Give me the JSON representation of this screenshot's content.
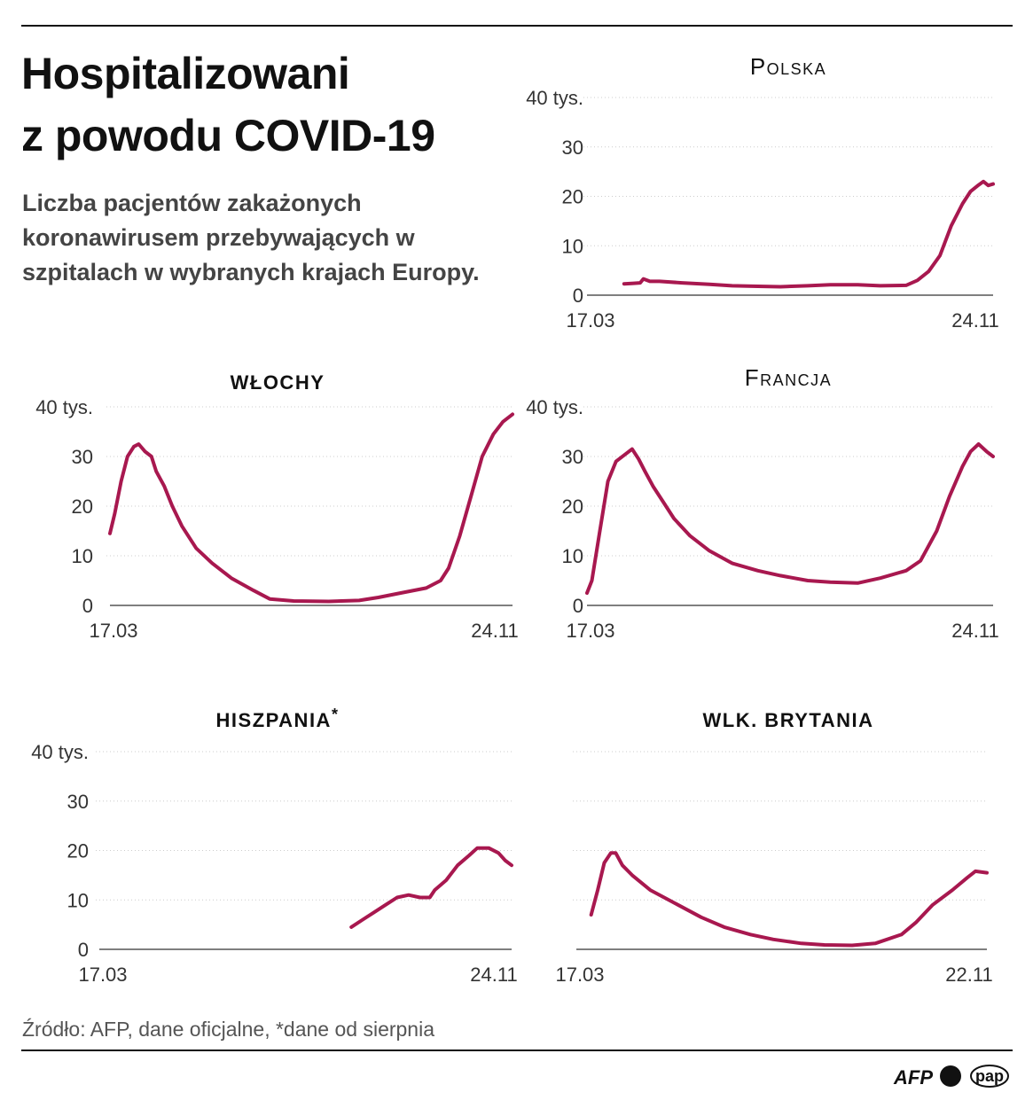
{
  "header": {
    "title_line1": "Hospitalizowani",
    "title_line2": "z powodu COVID-19",
    "subtitle": "Liczba pacjentów zakażonych koronawirusem przebywających w szpitalach w wybranych krajach Europy."
  },
  "footer": {
    "source": "Źródło: AFP, dane oficjalne, *dane od sierpnia",
    "logos": [
      "AFP",
      "pap"
    ]
  },
  "colors": {
    "line": "#a8184f",
    "grid": "#cccccc",
    "axis": "#333333"
  },
  "chart_data": [
    {
      "type": "line",
      "title": "Polska",
      "title_style": "small-caps",
      "ylim": [
        0,
        40
      ],
      "yticks": [
        "0",
        "10",
        "20",
        "30",
        "40 tys."
      ],
      "ytick_values": [
        0,
        10,
        20,
        30,
        40
      ],
      "xlabels": [
        "17.03",
        "24.11"
      ],
      "xrange": [
        "17.03",
        "24.11"
      ],
      "grid": true,
      "points": [
        [
          "09.04",
          2.3
        ],
        [
          "15.04",
          2.4
        ],
        [
          "19.04",
          2.5
        ],
        [
          "21.04",
          3.3
        ],
        [
          "25.04",
          2.8
        ],
        [
          "01.05",
          2.8
        ],
        [
          "15.05",
          2.5
        ],
        [
          "01.06",
          2.2
        ],
        [
          "15.06",
          1.9
        ],
        [
          "01.07",
          1.8
        ],
        [
          "15.07",
          1.7
        ],
        [
          "01.08",
          1.9
        ],
        [
          "15.08",
          2.1
        ],
        [
          "01.09",
          2.1
        ],
        [
          "15.09",
          1.9
        ],
        [
          "01.10",
          2.0
        ],
        [
          "08.10",
          3.0
        ],
        [
          "15.10",
          4.8
        ],
        [
          "22.10",
          8.0
        ],
        [
          "29.10",
          14.0
        ],
        [
          "05.11",
          18.5
        ],
        [
          "10.11",
          21.0
        ],
        [
          "15.11",
          22.3
        ],
        [
          "18.11",
          23.0
        ],
        [
          "21.11",
          22.2
        ],
        [
          "24.11",
          22.5
        ]
      ]
    },
    {
      "type": "line",
      "title": "WŁOCHY",
      "title_style": "uppercase",
      "ylim": [
        0,
        40
      ],
      "yticks": [
        "0",
        "10",
        "20",
        "30",
        "40 tys."
      ],
      "ytick_values": [
        0,
        10,
        20,
        30,
        40
      ],
      "xlabels": [
        "17.03",
        "24.11"
      ],
      "xrange": [
        "17.03",
        "24.11"
      ],
      "grid": true,
      "points": [
        [
          "17.03",
          14.5
        ],
        [
          "20.03",
          18.5
        ],
        [
          "24.03",
          25
        ],
        [
          "28.03",
          30
        ],
        [
          "01.04",
          32
        ],
        [
          "04.04",
          32.5
        ],
        [
          "08.04",
          31
        ],
        [
          "12.04",
          30
        ],
        [
          "15.04",
          27
        ],
        [
          "20.04",
          24
        ],
        [
          "25.04",
          20
        ],
        [
          "01.05",
          16
        ],
        [
          "10.05",
          11.5
        ],
        [
          "20.05",
          8.5
        ],
        [
          "01.06",
          5.5
        ],
        [
          "15.06",
          3.0
        ],
        [
          "25.06",
          1.3
        ],
        [
          "10.07",
          0.9
        ],
        [
          "01.08",
          0.8
        ],
        [
          "20.08",
          1.0
        ],
        [
          "01.09",
          1.6
        ],
        [
          "15.09",
          2.5
        ],
        [
          "01.10",
          3.5
        ],
        [
          "10.10",
          5.0
        ],
        [
          "15.10",
          7.5
        ],
        [
          "22.10",
          14
        ],
        [
          "29.10",
          22
        ],
        [
          "05.11",
          30
        ],
        [
          "12.11",
          34.5
        ],
        [
          "18.11",
          37
        ],
        [
          "24.11",
          38.5
        ]
      ]
    },
    {
      "type": "line",
      "title": "Francja",
      "title_style": "small-caps",
      "ylim": [
        0,
        40
      ],
      "yticks": [
        "0",
        "10",
        "20",
        "30",
        "40 tys."
      ],
      "ytick_values": [
        0,
        10,
        20,
        30,
        40
      ],
      "xlabels": [
        "17.03",
        "24.11"
      ],
      "xrange": [
        "17.03",
        "24.11"
      ],
      "grid": true,
      "points": [
        [
          "17.03",
          2.5
        ],
        [
          "20.03",
          5
        ],
        [
          "25.03",
          15
        ],
        [
          "30.03",
          25
        ],
        [
          "04.04",
          29
        ],
        [
          "10.04",
          30.5
        ],
        [
          "14.04",
          31.5
        ],
        [
          "18.04",
          29.5
        ],
        [
          "22.04",
          27
        ],
        [
          "27.04",
          24
        ],
        [
          "03.05",
          21
        ],
        [
          "10.05",
          17.5
        ],
        [
          "20.05",
          14
        ],
        [
          "01.06",
          11
        ],
        [
          "15.06",
          8.5
        ],
        [
          "01.07",
          7
        ],
        [
          "15.07",
          6
        ],
        [
          "01.08",
          5
        ],
        [
          "15.08",
          4.7
        ],
        [
          "01.09",
          4.5
        ],
        [
          "15.09",
          5.5
        ],
        [
          "01.10",
          7
        ],
        [
          "10.10",
          9
        ],
        [
          "20.10",
          15
        ],
        [
          "28.10",
          22
        ],
        [
          "05.11",
          28
        ],
        [
          "10.11",
          31
        ],
        [
          "15.11",
          32.5
        ],
        [
          "20.11",
          31
        ],
        [
          "24.11",
          30
        ]
      ]
    },
    {
      "type": "line",
      "title": "HISZPANIA",
      "title_mark": "*",
      "title_style": "uppercase",
      "ylim": [
        0,
        40
      ],
      "yticks": [
        "0",
        "10",
        "20",
        "30",
        "40 tys."
      ],
      "ytick_values": [
        0,
        10,
        20,
        30,
        40
      ],
      "xlabels": [
        "17.03",
        "24.11"
      ],
      "xrange": [
        "17.03",
        "24.11"
      ],
      "grid": true,
      "points": [
        [
          "18.08",
          4.5
        ],
        [
          "25.08",
          6
        ],
        [
          "01.09",
          7.5
        ],
        [
          "08.09",
          9
        ],
        [
          "15.09",
          10.5
        ],
        [
          "22.09",
          11
        ],
        [
          "29.09",
          10.5
        ],
        [
          "05.10",
          10.5
        ],
        [
          "08.10",
          12
        ],
        [
          "15.10",
          14
        ],
        [
          "22.10",
          17
        ],
        [
          "29.10",
          19
        ],
        [
          "03.11",
          20.5
        ],
        [
          "10.11",
          20.5
        ],
        [
          "16.11",
          19.5
        ],
        [
          "20.11",
          18
        ],
        [
          "24.11",
          17
        ]
      ]
    },
    {
      "type": "line",
      "title": "WLK. BRYTANIA",
      "title_style": "uppercase",
      "ylim": [
        0,
        40
      ],
      "yticks": [],
      "ytick_values": [
        0,
        10,
        20,
        30,
        40
      ],
      "xlabels": [
        "17.03",
        "22.11"
      ],
      "xrange": [
        "17.03",
        "22.11"
      ],
      "grid": true,
      "points": [
        [
          "26.03",
          7
        ],
        [
          "30.03",
          12
        ],
        [
          "03.04",
          17.5
        ],
        [
          "07.04",
          19.5
        ],
        [
          "10.04",
          19.5
        ],
        [
          "14.04",
          17
        ],
        [
          "20.04",
          15
        ],
        [
          "01.05",
          12
        ],
        [
          "15.05",
          9.5
        ],
        [
          "01.06",
          6.5
        ],
        [
          "15.06",
          4.5
        ],
        [
          "01.07",
          3
        ],
        [
          "15.07",
          2
        ],
        [
          "01.08",
          1.2
        ],
        [
          "15.08",
          0.9
        ],
        [
          "01.09",
          0.8
        ],
        [
          "15.09",
          1.2
        ],
        [
          "01.10",
          3
        ],
        [
          "10.10",
          5.5
        ],
        [
          "20.10",
          9
        ],
        [
          "01.11",
          12
        ],
        [
          "10.11",
          14.5
        ],
        [
          "15.11",
          15.8
        ],
        [
          "22.11",
          15.5
        ]
      ]
    }
  ]
}
